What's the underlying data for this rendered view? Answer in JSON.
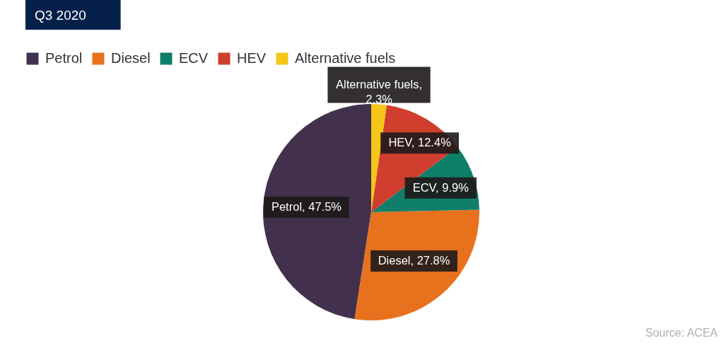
{
  "chart_data": {
    "type": "pie",
    "title": "Q3 2020",
    "categories": [
      "Petrol",
      "Diesel",
      "ECV",
      "HEV",
      "Alternative fuels"
    ],
    "values": [
      47.5,
      27.8,
      9.9,
      12.4,
      2.3
    ],
    "colors": [
      "#43304d",
      "#e8711e",
      "#0f7f6a",
      "#d03e2e",
      "#f5c518"
    ],
    "value_labels": [
      "Petrol, 47.5%",
      "Diesel, 27.8%",
      "ECV, 9.9%",
      "HEV, 12.4%",
      "Alternative fuels,\n2.3%"
    ],
    "legend": "top left",
    "annotations": [
      "Source: ACEA"
    ]
  }
}
